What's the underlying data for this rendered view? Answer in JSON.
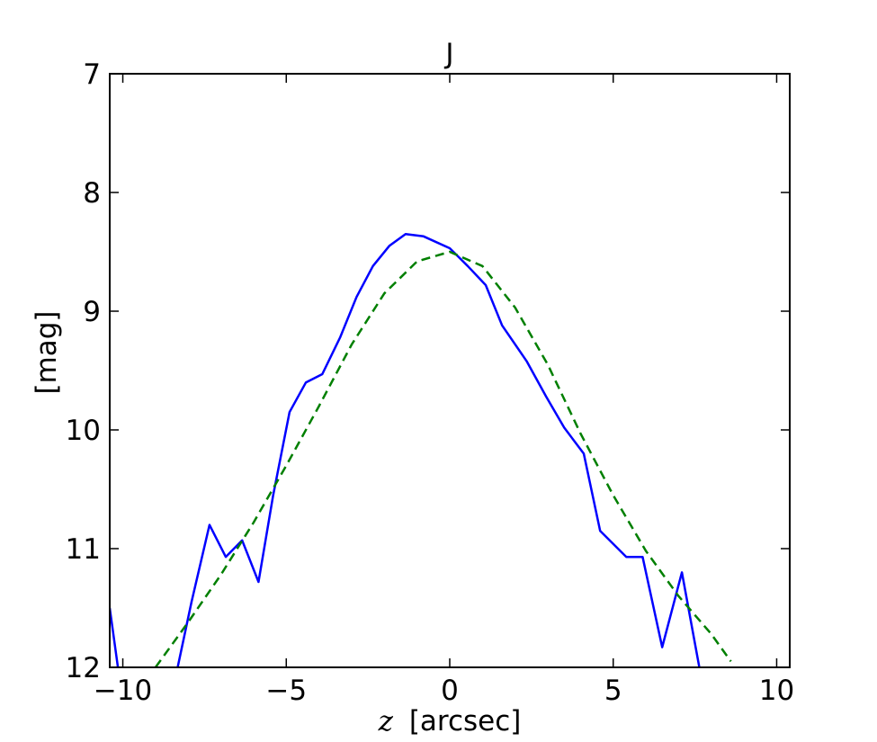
{
  "chart_data": {
    "type": "line",
    "title": "J",
    "xlabel_var": "z",
    "xlabel": "[arcsec]",
    "ylabel": "[mag]",
    "xlim": [
      -10.4,
      10.4
    ],
    "ylim": [
      12,
      7
    ],
    "y_inverted": true,
    "grid": false,
    "xticks": [
      -10,
      -5,
      0,
      5,
      10
    ],
    "xtick_labels": [
      "−10",
      "−5",
      "0",
      "5",
      "10"
    ],
    "yticks": [
      7,
      8,
      9,
      10,
      11,
      12
    ],
    "ytick_labels": [
      "7",
      "8",
      "9",
      "10",
      "11",
      "12"
    ],
    "series": [
      {
        "style": "solid",
        "color": "#0000ff",
        "x": [
          -10.4,
          -9.9,
          -9.4,
          -8.9,
          -8.4,
          -7.9,
          -7.35,
          -6.85,
          -6.35,
          -5.85,
          -5.4,
          -4.9,
          -4.4,
          -3.9,
          -3.35,
          -2.85,
          -2.35,
          -1.85,
          -1.35,
          -0.8,
          0.0,
          0.55,
          1.1,
          1.6,
          2.35,
          2.95,
          3.5,
          4.1,
          4.6,
          5.4,
          5.9,
          6.5,
          7.1,
          7.7,
          8.3,
          8.6
        ],
        "y": [
          11.5,
          12.5,
          12.6,
          12.6,
          12.1,
          11.45,
          10.8,
          11.07,
          10.93,
          11.28,
          10.55,
          9.85,
          9.6,
          9.53,
          9.22,
          8.88,
          8.62,
          8.45,
          8.35,
          8.37,
          8.47,
          8.62,
          8.78,
          9.12,
          9.42,
          9.72,
          9.98,
          10.2,
          10.85,
          11.07,
          11.07,
          11.83,
          11.2,
          12.1,
          12.3,
          12.3
        ]
      },
      {
        "style": "dashed",
        "color": "#007f00",
        "x": [
          -9.0,
          -8.0,
          -7.0,
          -6.0,
          -5.0,
          -4.0,
          -3.0,
          -2.0,
          -1.0,
          0.0,
          1.0,
          2.0,
          3.0,
          4.0,
          5.0,
          6.0,
          7.0,
          8.0,
          8.6
        ],
        "y": [
          12.0,
          11.62,
          11.22,
          10.78,
          10.3,
          9.8,
          9.28,
          8.85,
          8.58,
          8.5,
          8.62,
          8.97,
          9.45,
          10.03,
          10.55,
          11.02,
          11.4,
          11.72,
          11.95
        ]
      }
    ]
  }
}
